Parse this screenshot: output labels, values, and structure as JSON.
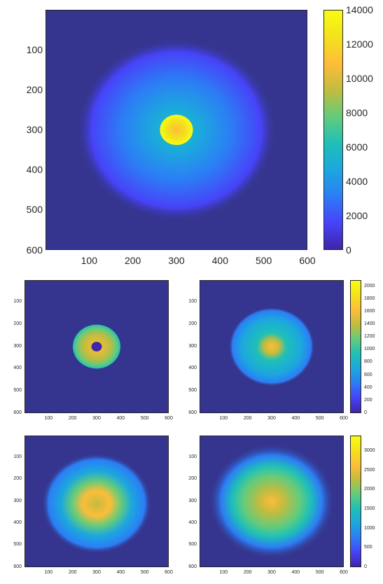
{
  "colormap": [
    "#3e26a8",
    "#4743f8",
    "#2c7df5",
    "#1ca7de",
    "#1fc0b7",
    "#63cb7c",
    "#c2bc3f",
    "#fdbd39",
    "#f3e21c",
    "#f9fb15"
  ],
  "background_color": "#35358f",
  "chart_data": [
    {
      "type": "heatmap",
      "id": "main",
      "xticks": [
        "100",
        "200",
        "300",
        "400",
        "500",
        "600"
      ],
      "yticks": [
        "100",
        "200",
        "300",
        "400",
        "500",
        "600"
      ],
      "xlim": [
        0,
        600
      ],
      "ylim": [
        0,
        600
      ],
      "colorbar": {
        "ticks": [
          "0",
          "2000",
          "4000",
          "6000",
          "8000",
          "10000",
          "12000",
          "14000"
        ],
        "range": [
          0,
          14000
        ]
      },
      "distribution": {
        "center": [
          300,
          300
        ],
        "peak": 14000,
        "core_radius": 35,
        "halo_value": 6000,
        "halo_radius": 190
      }
    },
    {
      "type": "heatmap",
      "id": "small-1",
      "xticks": [
        "100",
        "200",
        "300",
        "400",
        "500",
        "600"
      ],
      "yticks": [
        "100",
        "200",
        "300",
        "400",
        "500",
        "600"
      ],
      "xlim": [
        0,
        600
      ],
      "ylim": [
        0,
        600
      ],
      "distribution": {
        "center": [
          300,
          300
        ],
        "ring_inner_radius": 20,
        "ring_outer_radius": 100,
        "peak": 2000
      }
    },
    {
      "type": "heatmap",
      "id": "small-2",
      "xticks": [
        "100",
        "200",
        "300",
        "400",
        "500",
        "600"
      ],
      "yticks": [
        "100",
        "200",
        "300",
        "400",
        "500",
        "600"
      ],
      "xlim": [
        0,
        600
      ],
      "ylim": [
        0,
        600
      ],
      "colorbar": {
        "ticks": [
          "0",
          "200",
          "400",
          "600",
          "800",
          "1000",
          "1200",
          "1400",
          "1600",
          "1800",
          "2000"
        ],
        "range": [
          0,
          2100
        ]
      },
      "distribution": {
        "center": [
          300,
          300
        ],
        "peak": 2000,
        "radius": 170
      }
    },
    {
      "type": "heatmap",
      "id": "small-3",
      "xticks": [
        "100",
        "200",
        "300",
        "400",
        "500",
        "600"
      ],
      "yticks": [
        "100",
        "200",
        "300",
        "400",
        "500",
        "600"
      ],
      "xlim": [
        0,
        600
      ],
      "ylim": [
        0,
        600
      ],
      "distribution": {
        "center": [
          300,
          310
        ],
        "peak": 3000,
        "radius": 210,
        "inner_dip_radius": 40
      }
    },
    {
      "type": "heatmap",
      "id": "small-4",
      "xticks": [
        "100",
        "200",
        "300",
        "400",
        "500",
        "600"
      ],
      "yticks": [
        "100",
        "200",
        "300",
        "400",
        "500",
        "600"
      ],
      "xlim": [
        0,
        600
      ],
      "ylim": [
        0,
        600
      ],
      "colorbar": {
        "ticks": [
          "0",
          "500",
          "1000",
          "1500",
          "2000",
          "2500",
          "3000"
        ],
        "range": [
          0,
          3400
        ]
      },
      "distribution": {
        "center": [
          300,
          300
        ],
        "peak": 3000,
        "radius": 250
      }
    }
  ]
}
